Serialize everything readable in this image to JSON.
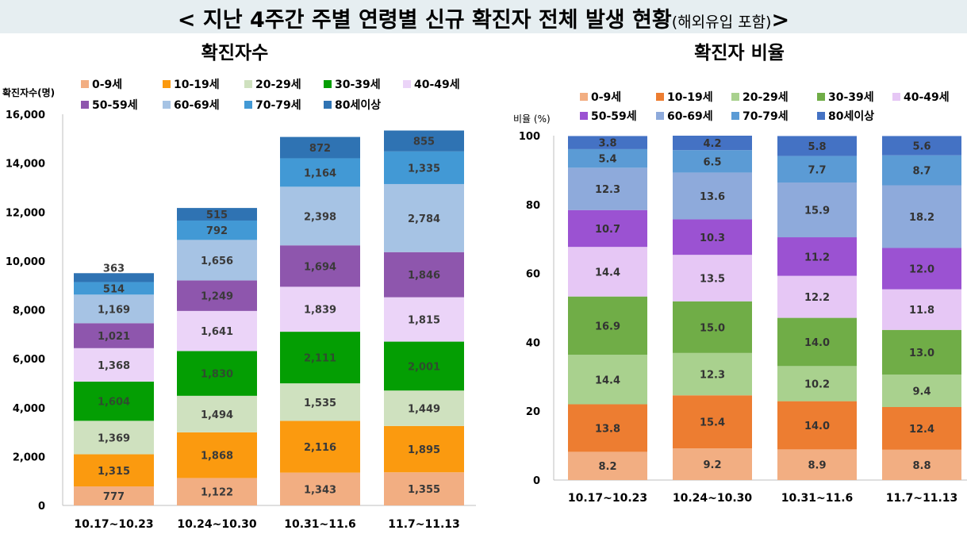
{
  "header": {
    "title_main": "< 지난 4주간 주별 연령별 신규 확진자 전체 발생 현황",
    "title_sub": "(해외유입 포함)",
    "title_end": ">"
  },
  "colors": {
    "header_bg": "#e6eef1",
    "left_palette": [
      "#f2ae82",
      "#fb9a0f",
      "#cfe1bf",
      "#049e03",
      "#ebd4f8",
      "#8e56ad",
      "#a6c3e4",
      "#4299d5",
      "#2f73b3"
    ],
    "right_palette": [
      "#f2ae82",
      "#ed7d31",
      "#a9d18e",
      "#70ad47",
      "#e6c7f5",
      "#9b52d2",
      "#8eaadb",
      "#5b9bd5",
      "#4472c4"
    ]
  },
  "chart_data": [
    {
      "type": "bar",
      "stacked": true,
      "title": "확진자수",
      "ylabel": "확진자수(명)",
      "xlabel": "",
      "ylim": [
        0,
        16000
      ],
      "yticks": [
        0,
        2000,
        4000,
        6000,
        8000,
        10000,
        12000,
        14000,
        16000
      ],
      "ytick_labels": [
        "0",
        "2,000",
        "4,000",
        "6,000",
        "8,000",
        "10,000",
        "12,000",
        "14,000",
        "16,000"
      ],
      "categories": [
        "10.17~10.23",
        "10.24~10.30",
        "10.31~11.6",
        "11.7~11.13"
      ],
      "series": [
        {
          "name": "0-9세",
          "values": [
            777,
            1122,
            1343,
            1355
          ],
          "labels": [
            "777",
            "1,122",
            "1,343",
            "1,355"
          ]
        },
        {
          "name": "10-19세",
          "values": [
            1315,
            1868,
            2116,
            1895
          ],
          "labels": [
            "1,315",
            "1,868",
            "2,116",
            "1,895"
          ]
        },
        {
          "name": "20-29세",
          "values": [
            1369,
            1494,
            1535,
            1449
          ],
          "labels": [
            "1,369",
            "1,494",
            "1,535",
            "1,449"
          ]
        },
        {
          "name": "30-39세",
          "values": [
            1604,
            1830,
            2111,
            2001
          ],
          "labels": [
            "1,604",
            "1,830",
            "2,111",
            "2,001"
          ]
        },
        {
          "name": "40-49세",
          "values": [
            1368,
            1641,
            1839,
            1815
          ],
          "labels": [
            "1,368",
            "1,641",
            "1,839",
            "1,815"
          ]
        },
        {
          "name": "50-59세",
          "values": [
            1021,
            1249,
            1694,
            1846
          ],
          "labels": [
            "1,021",
            "1,249",
            "1,694",
            "1,846"
          ]
        },
        {
          "name": "60-69세",
          "values": [
            1169,
            1656,
            2398,
            2784
          ],
          "labels": [
            "1,169",
            "1,656",
            "2,398",
            "2,784"
          ]
        },
        {
          "name": "70-79세",
          "values": [
            514,
            792,
            1164,
            1335
          ],
          "labels": [
            "514",
            "792",
            "1,164",
            "1,335"
          ]
        },
        {
          "name": "80세이상",
          "values": [
            363,
            515,
            872,
            855
          ],
          "labels": [
            "363",
            "515",
            "872",
            "855"
          ]
        }
      ],
      "legend": "top"
    },
    {
      "type": "bar",
      "stacked": true,
      "title": "확진자 비율",
      "ylabel": "비율 (%)",
      "xlabel": "",
      "ylim": [
        0,
        100
      ],
      "yticks": [
        0,
        20,
        40,
        60,
        80,
        100
      ],
      "ytick_labels": [
        "0",
        "20",
        "40",
        "60",
        "80",
        "100"
      ],
      "categories": [
        "10.17~10.23",
        "10.24~10.30",
        "10.31~11.6",
        "11.7~11.13"
      ],
      "series": [
        {
          "name": "0-9세",
          "values": [
            8.2,
            9.2,
            8.9,
            8.8
          ],
          "labels": [
            "8.2",
            "9.2",
            "8.9",
            "8.8"
          ]
        },
        {
          "name": "10-19세",
          "values": [
            13.8,
            15.4,
            14.0,
            12.4
          ],
          "labels": [
            "13.8",
            "15.4",
            "14.0",
            "12.4"
          ]
        },
        {
          "name": "20-29세",
          "values": [
            14.4,
            12.3,
            10.2,
            9.4
          ],
          "labels": [
            "14.4",
            "12.3",
            "10.2",
            "9.4"
          ]
        },
        {
          "name": "30-39세",
          "values": [
            16.9,
            15.0,
            14.0,
            13.0
          ],
          "labels": [
            "16.9",
            "15.0",
            "14.0",
            "13.0"
          ]
        },
        {
          "name": "40-49세",
          "values": [
            14.4,
            13.5,
            12.2,
            11.8
          ],
          "labels": [
            "14.4",
            "13.5",
            "12.2",
            "11.8"
          ]
        },
        {
          "name": "50-59세",
          "values": [
            10.7,
            10.3,
            11.2,
            12.0
          ],
          "labels": [
            "10.7",
            "10.3",
            "11.2",
            "12.0"
          ]
        },
        {
          "name": "60-69세",
          "values": [
            12.3,
            13.6,
            15.9,
            18.2
          ],
          "labels": [
            "12.3",
            "13.6",
            "15.9",
            "18.2"
          ]
        },
        {
          "name": "70-79세",
          "values": [
            5.4,
            6.5,
            7.7,
            8.7
          ],
          "labels": [
            "5.4",
            "6.5",
            "7.7",
            "8.7"
          ]
        },
        {
          "name": "80세이상",
          "values": [
            3.8,
            4.2,
            5.8,
            5.6
          ],
          "labels": [
            "3.8",
            "4.2",
            "5.8",
            "5.6"
          ]
        }
      ],
      "legend": "top"
    }
  ]
}
